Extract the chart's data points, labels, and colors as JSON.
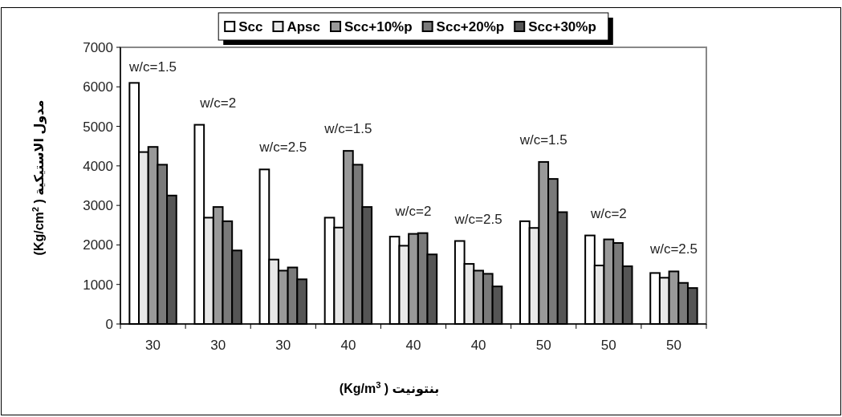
{
  "chart_data": {
    "type": "bar",
    "xlabel": "(Kg/m$^{3}$ ) بنتونيت",
    "ylabel": "(Kg/cm$^{2}$ ) مدول الاستيكية",
    "categories": [
      "30",
      "30",
      "30",
      "40",
      "40",
      "40",
      "50",
      "50",
      "50"
    ],
    "series": [
      {
        "name": "Scc",
        "color": "#ffffff",
        "values": [
          6100,
          5040,
          3910,
          2690,
          2210,
          2100,
          2600,
          2240,
          1290
        ]
      },
      {
        "name": "Apsc",
        "color": "#e8e8e8",
        "values": [
          4350,
          2690,
          1630,
          2440,
          1980,
          1520,
          2430,
          1480,
          1170
        ]
      },
      {
        "name": "Scc+10%p",
        "color": "#999999",
        "values": [
          4480,
          2960,
          1350,
          4380,
          2280,
          1350,
          4100,
          2140,
          1330
        ]
      },
      {
        "name": "Scc+20%p",
        "color": "#7a7a7a",
        "values": [
          4030,
          2600,
          1430,
          4030,
          2300,
          1270,
          3670,
          2050,
          1040
        ]
      },
      {
        "name": "Scc+30%p",
        "color": "#555555",
        "values": [
          3250,
          1860,
          1130,
          2960,
          1760,
          950,
          2830,
          1460,
          910
        ]
      }
    ],
    "annotations": [
      "w/c=1.5",
      "w/c=2",
      "w/c=2.5",
      "w/c=1.5",
      "w/c=2",
      "w/c=2.5",
      "w/c=1.5",
      "w/c=2",
      "w/c=2.5"
    ],
    "ylim": [
      0,
      7000
    ],
    "yticks": [
      0,
      1000,
      2000,
      3000,
      4000,
      5000,
      6000,
      7000
    ],
    "grid": false,
    "legend": "top"
  }
}
